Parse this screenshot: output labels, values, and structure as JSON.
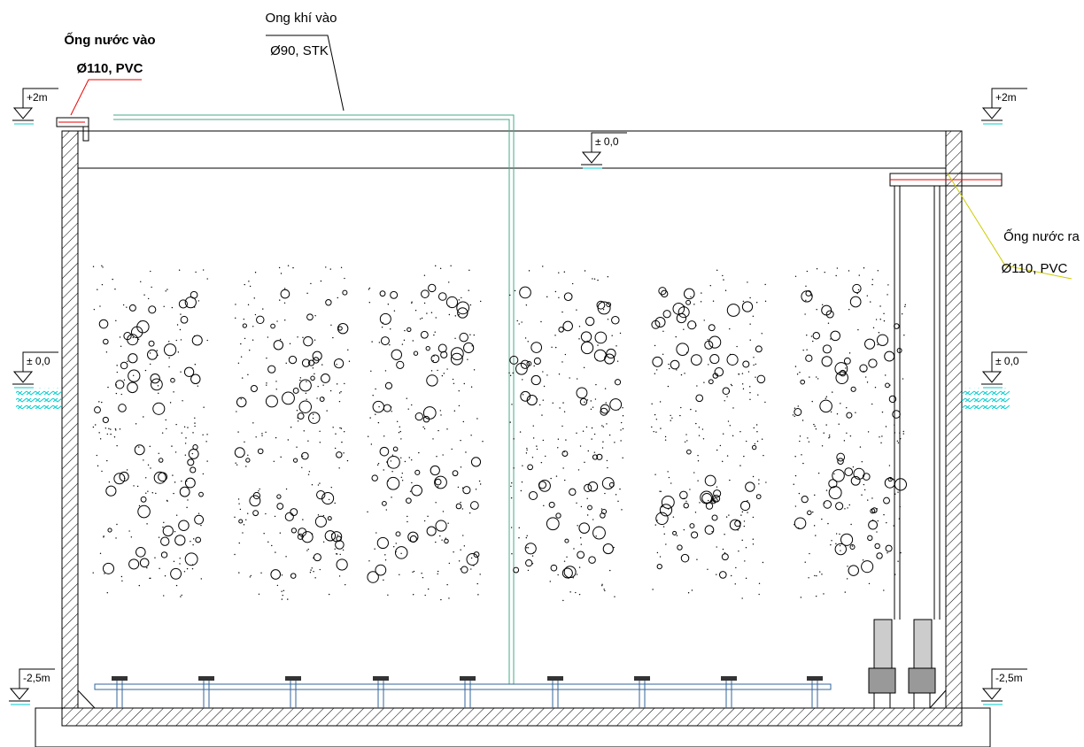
{
  "inlet": {
    "line1": "Ống nước vào",
    "line2": "Ø110, PVC"
  },
  "air": {
    "line1": "Ong khí vào",
    "line2": "Ø90, STK"
  },
  "outlet": {
    "line1": "Ống nước ra",
    "line2": "Ø110, PVC"
  },
  "levels": {
    "left": {
      "top": "+2m",
      "ground": "± 0,0",
      "bottom": "-2,5m"
    },
    "right": {
      "top": "+2m",
      "ground": "± 0,0",
      "bottom": "-2,5m"
    },
    "water": "± 0,0"
  }
}
